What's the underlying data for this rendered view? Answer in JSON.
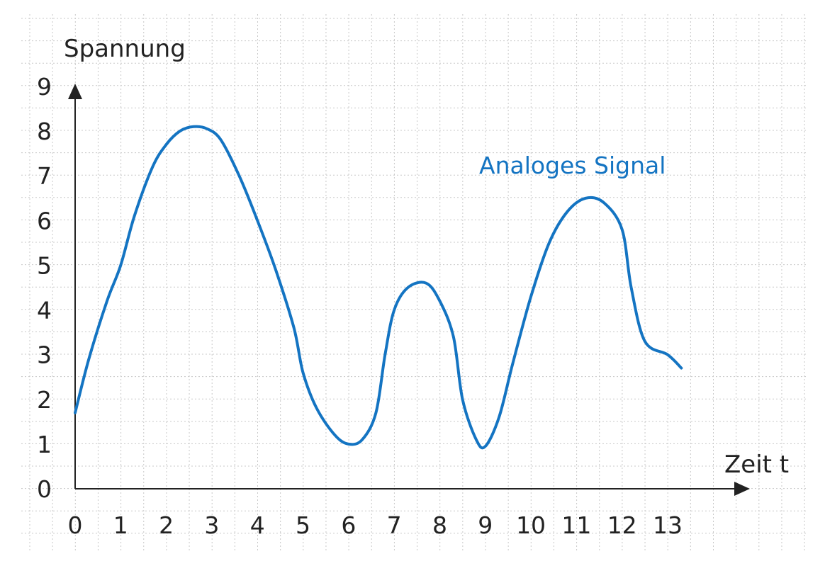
{
  "chart_data": {
    "type": "line",
    "ylabel": "Spannung",
    "xlabel": "Zeit t",
    "xlim": [
      0,
      13
    ],
    "ylim": [
      0,
      9
    ],
    "x_ticks": [
      "0",
      "1",
      "2",
      "3",
      "4",
      "5",
      "6",
      "7",
      "8",
      "9",
      "10",
      "11",
      "12",
      "13"
    ],
    "y_ticks": [
      "0",
      "1",
      "2",
      "3",
      "4",
      "5",
      "6",
      "7",
      "8",
      "9"
    ],
    "grid": true,
    "series": [
      {
        "name": "Analoges Signal",
        "color": "#1474c2",
        "x": [
          0,
          0.3,
          0.7,
          1.0,
          1.3,
          1.7,
          2.0,
          2.3,
          2.6,
          2.9,
          3.2,
          3.6,
          4.0,
          4.4,
          4.8,
          5.0,
          5.3,
          5.7,
          6.0,
          6.3,
          6.6,
          6.8,
          7.0,
          7.3,
          7.7,
          8.0,
          8.3,
          8.5,
          8.8,
          9.0,
          9.3,
          9.6,
          10.0,
          10.4,
          10.8,
          11.2,
          11.6,
          12.0,
          12.2,
          12.5,
          13.0,
          13.3
        ],
        "y": [
          1.7,
          2.9,
          4.2,
          5.0,
          6.1,
          7.2,
          7.7,
          8.0,
          8.1,
          8.05,
          7.8,
          7.0,
          6.0,
          4.9,
          3.6,
          2.6,
          1.8,
          1.2,
          1.0,
          1.1,
          1.7,
          3.0,
          4.0,
          4.5,
          4.6,
          4.2,
          3.4,
          2.0,
          1.1,
          0.95,
          1.6,
          2.8,
          4.3,
          5.5,
          6.2,
          6.5,
          6.4,
          5.8,
          4.5,
          3.3,
          3.0,
          2.7
        ]
      }
    ]
  }
}
